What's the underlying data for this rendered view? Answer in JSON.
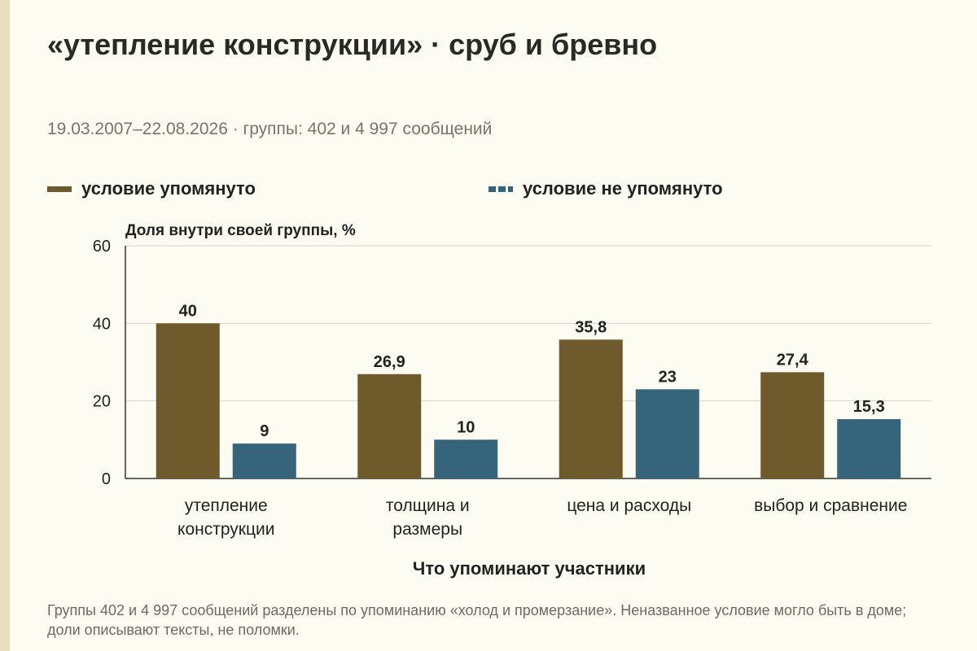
{
  "title": "«утепление конструкции» · сруб и бревно",
  "subtitle": "19.03.2007–22.08.2026 · группы: 402 и 4 997 сообщений",
  "footnote": "Группы 402 и 4 997 сообщений разделены по упоминанию «холод и промерзание». Неназванное условие могло быть в доме; доли описывают тексты, не поломки.",
  "colors": {
    "mentioned": "#6e5a2a",
    "not_mentioned": "#36647a",
    "grid": "#d9d6cc",
    "axis": "#333333"
  },
  "chart_data": {
    "type": "bar",
    "ylabel": "Доля внутри своей группы, %",
    "xlabel": "Что упоминают участники",
    "ylim": [
      0,
      60
    ],
    "yticks": [
      0,
      20,
      40,
      60
    ],
    "grid": true,
    "legend_position": "top",
    "categories": [
      [
        "утепление",
        "конструкции"
      ],
      [
        "толщина и",
        "размеры"
      ],
      [
        "цена и расходы"
      ],
      [
        "выбор и сравнение"
      ]
    ],
    "series": [
      {
        "name": "условие упомянуто",
        "color": "#6e5a2a",
        "values": [
          40,
          26.9,
          35.8,
          27.4
        ],
        "labels": [
          "40",
          "26,9",
          "35,8",
          "27,4"
        ]
      },
      {
        "name": "условие не упомянуто",
        "color": "#36647a",
        "values": [
          9,
          10,
          23,
          15.3
        ],
        "labels": [
          "9",
          "10",
          "23",
          "15,3"
        ]
      }
    ]
  }
}
